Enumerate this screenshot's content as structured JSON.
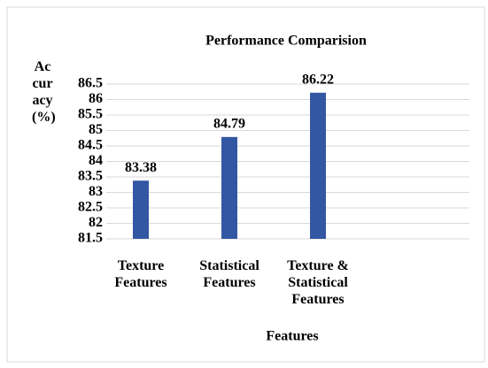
{
  "chart_data": {
    "type": "bar",
    "title": "Performance Comparision",
    "x_label": "Features",
    "y_label": "Accuracy (%)",
    "categories": [
      "Texture Features",
      "Statistical Features",
      "Texture & Statistical Features"
    ],
    "values": [
      83.38,
      84.79,
      86.22
    ],
    "color": "#3457a3",
    "ylim": [
      81.5,
      86.5
    ],
    "yticks": [
      81.5,
      82,
      82.5,
      83,
      83.5,
      84,
      84.5,
      85,
      85.5,
      86,
      86.5
    ],
    "grid": true,
    "data_labels": true
  }
}
